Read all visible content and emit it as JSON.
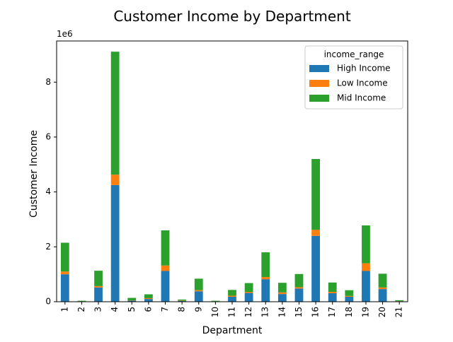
{
  "chart_data": {
    "type": "bar",
    "stacked": true,
    "title": "Customer Income by Department",
    "xlabel": "Department",
    "ylabel": "Customer Income",
    "y_offset_label": "1e6",
    "y_scale_factor": 1000000,
    "ylim": [
      0,
      9500000
    ],
    "yticks": [
      0,
      2000000,
      4000000,
      6000000,
      8000000
    ],
    "ytick_labels": [
      "0",
      "2",
      "4",
      "6",
      "8"
    ],
    "grid": false,
    "legend": {
      "title": "income_range",
      "placement": "top-right"
    },
    "categories": [
      "1",
      "2",
      "3",
      "4",
      "5",
      "6",
      "7",
      "8",
      "9",
      "10",
      "11",
      "12",
      "13",
      "14",
      "15",
      "16",
      "17",
      "18",
      "19",
      "20",
      "21"
    ],
    "series": [
      {
        "name": "High Income",
        "color": "#1f77b4",
        "values": [
          1000000,
          10000,
          520000,
          4250000,
          40000,
          100000,
          1120000,
          30000,
          380000,
          10000,
          180000,
          320000,
          820000,
          280000,
          480000,
          2400000,
          310000,
          180000,
          1120000,
          460000,
          20000
        ]
      },
      {
        "name": "Low Income",
        "color": "#ff7f0e",
        "values": [
          100000,
          5000,
          50000,
          380000,
          10000,
          30000,
          200000,
          10000,
          40000,
          5000,
          40000,
          40000,
          80000,
          60000,
          50000,
          220000,
          50000,
          30000,
          280000,
          60000,
          5000
        ]
      },
      {
        "name": "Mid Income",
        "color": "#2ca02c",
        "values": [
          1050000,
          20000,
          560000,
          4480000,
          90000,
          140000,
          1280000,
          40000,
          420000,
          20000,
          210000,
          320000,
          900000,
          350000,
          480000,
          2580000,
          340000,
          210000,
          1380000,
          500000,
          30000
        ]
      }
    ]
  }
}
